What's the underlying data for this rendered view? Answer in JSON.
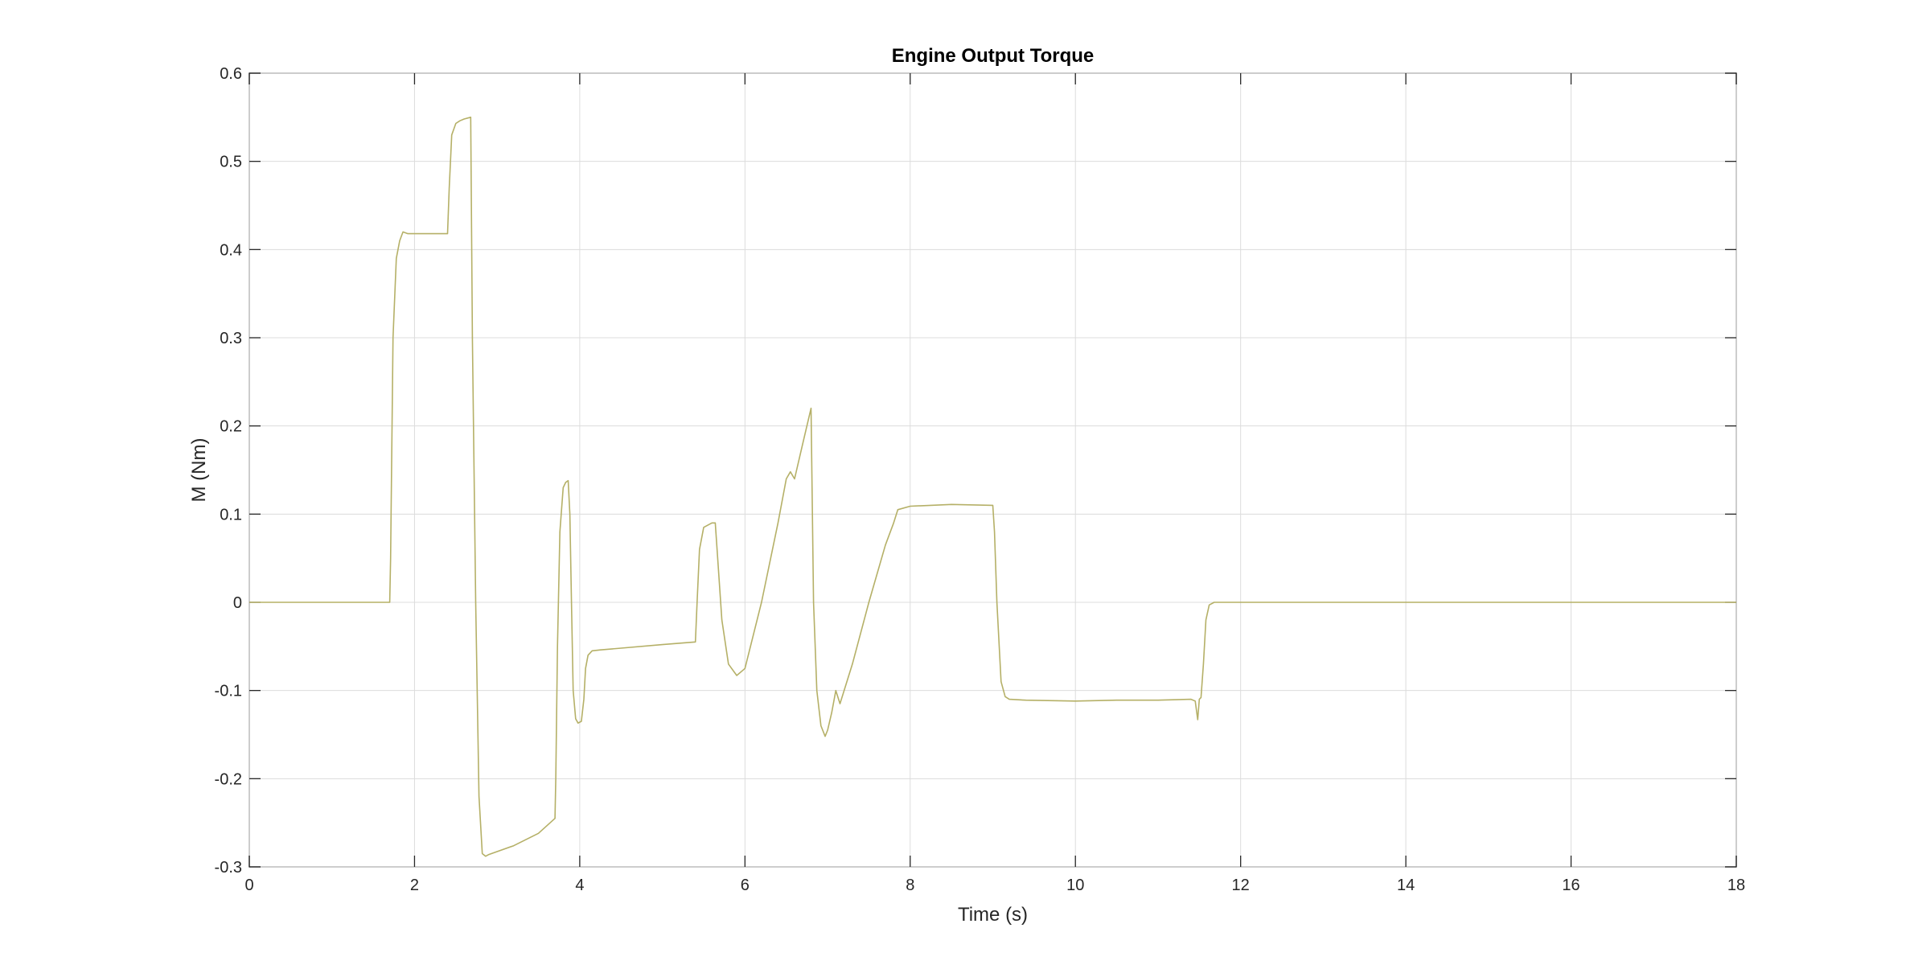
{
  "chart_data": {
    "type": "line",
    "title": "Engine Output Torque",
    "xlabel": "Time (s)",
    "ylabel": "M (Nm)",
    "xlim": [
      0,
      18
    ],
    "ylim": [
      -0.3,
      0.6
    ],
    "xticks": [
      0,
      2,
      4,
      6,
      8,
      10,
      12,
      14,
      16,
      18
    ],
    "yticks": [
      -0.3,
      -0.2,
      -0.1,
      0,
      0.1,
      0.2,
      0.3,
      0.4,
      0.5,
      0.6
    ],
    "xtick_labels": [
      "0",
      "2",
      "4",
      "6",
      "8",
      "10",
      "12",
      "14",
      "16",
      "18"
    ],
    "ytick_labels": [
      "-0.3",
      "-0.2",
      "-0.1",
      "0",
      "0.1",
      "0.2",
      "0.3",
      "0.4",
      "0.5",
      "0.6"
    ],
    "grid": true,
    "series": [
      {
        "name": "Engine Output Torque",
        "color": "#b5b067",
        "x": [
          0,
          1.7,
          1.71,
          1.74,
          1.78,
          1.82,
          1.86,
          1.92,
          2.0,
          2.2,
          2.4,
          2.42,
          2.45,
          2.5,
          2.55,
          2.6,
          2.68,
          2.7,
          2.74,
          2.78,
          2.82,
          2.86,
          2.9,
          3.2,
          3.5,
          3.7,
          3.71,
          3.73,
          3.76,
          3.8,
          3.83,
          3.86,
          3.88,
          3.9,
          3.92,
          3.95,
          3.98,
          4.02,
          4.05,
          4.07,
          4.1,
          4.15,
          4.25,
          4.5,
          5.0,
          5.4,
          5.42,
          5.45,
          5.5,
          5.6,
          5.64,
          5.67,
          5.72,
          5.8,
          5.9,
          6.0,
          6.2,
          6.4,
          6.5,
          6.55,
          6.6,
          6.7,
          6.8,
          6.83,
          6.87,
          6.92,
          6.97,
          7.0,
          7.05,
          7.1,
          7.15,
          7.3,
          7.5,
          7.7,
          7.8,
          7.85,
          8.0,
          8.5,
          9.0,
          9.02,
          9.05,
          9.1,
          9.15,
          9.2,
          9.4,
          10.0,
          10.5,
          11.0,
          11.4,
          11.45,
          11.48,
          11.5,
          11.52,
          11.55,
          11.58,
          11.62,
          11.68,
          11.8,
          13,
          15,
          18
        ],
        "values": [
          0,
          0,
          0.05,
          0.3,
          0.39,
          0.41,
          0.42,
          0.418,
          0.418,
          0.418,
          0.418,
          0.47,
          0.53,
          0.543,
          0.546,
          0.548,
          0.55,
          0.3,
          0.0,
          -0.22,
          -0.285,
          -0.288,
          -0.286,
          -0.276,
          -0.262,
          -0.245,
          -0.2,
          -0.05,
          0.08,
          0.13,
          0.136,
          0.138,
          0.1,
          0.0,
          -0.1,
          -0.132,
          -0.137,
          -0.135,
          -0.11,
          -0.075,
          -0.06,
          -0.055,
          -0.054,
          -0.052,
          -0.048,
          -0.045,
          0.0,
          0.06,
          0.085,
          0.09,
          0.09,
          0.05,
          -0.02,
          -0.07,
          -0.083,
          -0.075,
          0.0,
          0.09,
          0.14,
          0.148,
          0.14,
          0.18,
          0.22,
          0.0,
          -0.1,
          -0.14,
          -0.152,
          -0.145,
          -0.125,
          -0.1,
          -0.115,
          -0.07,
          0.0,
          0.065,
          0.09,
          0.105,
          0.109,
          0.111,
          0.11,
          0.08,
          0.0,
          -0.09,
          -0.107,
          -0.11,
          -0.111,
          -0.112,
          -0.111,
          -0.111,
          -0.11,
          -0.112,
          -0.133,
          -0.11,
          -0.108,
          -0.07,
          -0.02,
          -0.003,
          0.0,
          0.0,
          0.0,
          0.0,
          0.0
        ]
      }
    ]
  }
}
